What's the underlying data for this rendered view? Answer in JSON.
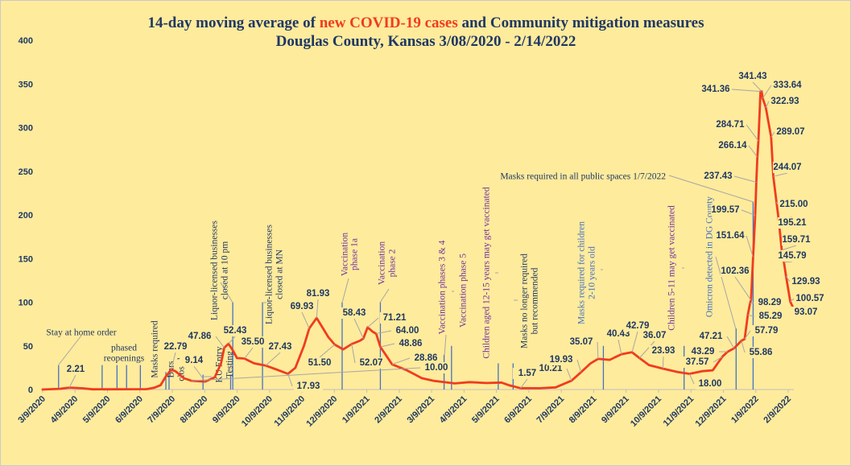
{
  "chart_data": {
    "type": "line",
    "title_line1_before": "14-day moving average of ",
    "title_line1_highlight": "new COVID-19 cases",
    "title_line1_after": " and Community mitigation measures",
    "title_line2": "Douglas County, Kansas 3/08/2020 - 2/14/2022",
    "xlabel": "",
    "ylabel": "",
    "ylim": [
      0,
      400
    ],
    "yticks": [
      "0",
      "50",
      "100",
      "150",
      "200",
      "250",
      "300",
      "350",
      "400"
    ],
    "xticks": [
      "3/9/2020",
      "4/9/2020",
      "5/9/2020",
      "6/9/2020",
      "7/9/2020",
      "8/9/2020",
      "9/9/2020",
      "10/9/2020",
      "11/9/2020",
      "12/9/2020",
      "1/9/2021",
      "2/9/2021",
      "3/9/2021",
      "4/9/2021",
      "5/9/2021",
      "6/9/2021",
      "7/9/2021",
      "8/9/2021",
      "9/9/2021",
      "10/9/2021",
      "11/9/2021",
      "12/9/2021",
      "1/9/2022",
      "2/9/2022"
    ],
    "grid": false,
    "colors": {
      "series": "#F03C1E",
      "event_line": "#4472C4",
      "leader": "#A6A6A6",
      "text": "#1F3864",
      "highlight": "#F03C1E",
      "purple": "#7030A0",
      "blue": "#4472C4"
    },
    "series": [
      {
        "name": "14-day moving average of new COVID-19 cases",
        "points": [
          [
            "2020-03-08",
            0
          ],
          [
            "2020-03-25",
            0.8
          ],
          [
            "2020-04-03",
            2.21
          ],
          [
            "2020-04-15",
            1.5
          ],
          [
            "2020-04-25",
            0.3
          ],
          [
            "2020-06-15",
            0.5
          ],
          [
            "2020-06-22",
            2
          ],
          [
            "2020-06-28",
            5
          ],
          [
            "2020-07-03",
            15
          ],
          [
            "2020-07-08",
            22.79
          ],
          [
            "2020-07-12",
            21
          ],
          [
            "2020-07-20",
            13
          ],
          [
            "2020-07-27",
            10
          ],
          [
            "2020-08-09",
            9.14
          ],
          [
            "2020-08-18",
            14
          ],
          [
            "2020-08-24",
            30
          ],
          [
            "2020-08-27",
            47.86
          ],
          [
            "2020-08-31",
            52.43
          ],
          [
            "2020-09-04",
            45
          ],
          [
            "2020-09-08",
            36
          ],
          [
            "2020-09-15",
            35.5
          ],
          [
            "2020-09-24",
            30
          ],
          [
            "2020-10-05",
            27.43
          ],
          [
            "2020-10-15",
            23
          ],
          [
            "2020-10-26",
            17.93
          ],
          [
            "2020-11-02",
            25
          ],
          [
            "2020-11-10",
            50
          ],
          [
            "2020-11-15",
            69.93
          ],
          [
            "2020-11-22",
            81.93
          ],
          [
            "2020-11-27",
            72
          ],
          [
            "2020-12-03",
            60
          ],
          [
            "2020-12-09",
            51.5
          ],
          [
            "2020-12-17",
            46
          ],
          [
            "2020-12-25",
            52.07
          ],
          [
            "2021-01-02",
            56
          ],
          [
            "2021-01-05",
            58.43
          ],
          [
            "2021-01-09",
            71.21
          ],
          [
            "2021-01-14",
            66
          ],
          [
            "2021-01-17",
            64
          ],
          [
            "2021-01-21",
            48.86
          ],
          [
            "2021-01-27",
            38
          ],
          [
            "2021-02-01",
            28.86
          ],
          [
            "2021-02-15",
            22
          ],
          [
            "2021-03-01",
            13
          ],
          [
            "2021-03-12",
            10
          ],
          [
            "2021-04-01",
            7
          ],
          [
            "2021-04-15",
            8.5
          ],
          [
            "2021-05-01",
            7.5
          ],
          [
            "2021-05-15",
            8
          ],
          [
            "2021-05-22",
            5
          ],
          [
            "2021-06-02",
            1.57
          ],
          [
            "2021-06-20",
            1.5
          ],
          [
            "2021-07-05",
            2.5
          ],
          [
            "2021-07-20",
            10.21
          ],
          [
            "2021-07-29",
            19.93
          ],
          [
            "2021-08-07",
            30
          ],
          [
            "2021-08-14",
            35.07
          ],
          [
            "2021-08-25",
            34
          ],
          [
            "2021-09-05",
            40.43
          ],
          [
            "2021-09-15",
            42.79
          ],
          [
            "2021-09-22",
            36.07
          ],
          [
            "2021-10-01",
            28
          ],
          [
            "2021-10-14",
            23.93
          ],
          [
            "2021-10-28",
            20
          ],
          [
            "2021-11-08",
            18
          ],
          [
            "2021-11-20",
            21
          ],
          [
            "2021-11-30",
            22
          ],
          [
            "2021-12-09",
            37.57
          ],
          [
            "2021-12-14",
            43.29
          ],
          [
            "2021-12-20",
            47.21
          ],
          [
            "2021-12-27",
            55.86
          ],
          [
            "2021-12-30",
            57.79
          ],
          [
            "2022-01-02",
            85.29
          ],
          [
            "2022-01-04",
            98.29
          ],
          [
            "2022-01-05",
            102.36
          ],
          [
            "2022-01-07",
            151.64
          ],
          [
            "2022-01-09",
            199.57
          ],
          [
            "2022-01-10",
            237.43
          ],
          [
            "2022-01-11",
            266.14
          ],
          [
            "2022-01-12",
            284.71
          ],
          [
            "2022-01-14",
            341.36
          ],
          [
            "2022-01-15",
            341.43
          ],
          [
            "2022-01-16",
            333.64
          ],
          [
            "2022-01-19",
            322.93
          ],
          [
            "2022-01-24",
            289.07
          ],
          [
            "2022-01-26",
            244.07
          ],
          [
            "2022-01-29",
            215
          ],
          [
            "2022-01-31",
            195.21
          ],
          [
            "2022-02-03",
            159.71
          ],
          [
            "2022-02-05",
            145.79
          ],
          [
            "2022-02-07",
            129.93
          ],
          [
            "2022-02-11",
            100.57
          ],
          [
            "2022-02-14",
            93.07
          ]
        ]
      }
    ],
    "data_labels": [
      "2.21",
      "22.79",
      "9.14",
      "47.86",
      "52.43",
      "35.50",
      "27.43",
      "17.93",
      "69.93",
      "81.93",
      "51.50",
      "58.43",
      "52.07",
      "71.21",
      "64.00",
      "48.86",
      "28.86",
      "10.00",
      "1.57",
      "10.21",
      "19.93",
      "35.07",
      "40.43",
      "42.79",
      "36.07",
      "23.93",
      "18.00",
      "43.29",
      "37.57",
      "47.21",
      "55.86",
      "57.79",
      "85.29",
      "98.29",
      "102.36",
      "151.64",
      "199.57",
      "237.43",
      "266.14",
      "284.71",
      "341.36",
      "341.43",
      "333.64",
      "322.93",
      "289.07",
      "244.07",
      "215.00",
      "195.21",
      "159.71",
      "145.79",
      "129.93",
      "100.57",
      "93.07"
    ],
    "events": [
      {
        "lines": [
          "Stay at home order"
        ],
        "dates": [
          "2020-03-24"
        ],
        "marker_height": 28,
        "color": "text"
      },
      {
        "lines": [
          "phased",
          "reopenings"
        ],
        "dates": [
          "2020-05-04",
          "2020-05-18",
          "2020-05-27",
          "2020-06-09"
        ],
        "marker_height": 28,
        "color": "text"
      },
      {
        "lines": [
          "Masks required"
        ],
        "dates": [
          "2020-07-03"
        ],
        "marker_height": 20,
        "color": "text"
      },
      {
        "lines": [
          "Bars",
          "closed"
        ],
        "dates": [
          "2020-07-06"
        ],
        "marker_height": 20,
        "color": "text"
      },
      {
        "lines": [
          "KU Entry",
          "Testing"
        ],
        "dates": [
          "2020-08-07",
          "2020-09-02"
        ],
        "marker_height": 17,
        "color": "text"
      },
      {
        "lines": [
          "Liquor-licensed businesses",
          "closed at 10 pm"
        ],
        "dates": [
          "2020-09-04"
        ],
        "marker_height": 100,
        "color": "text"
      },
      {
        "lines": [
          "Liquor-licensed businesses",
          "closed at MN"
        ],
        "dates": [
          "2020-10-02"
        ],
        "marker_height": 100,
        "color": "text"
      },
      {
        "lines": [
          "Vaccination",
          "phase 1a"
        ],
        "dates": [
          "2020-12-16"
        ],
        "marker_height": 100,
        "color": "purple"
      },
      {
        "lines": [
          "Vaccination",
          "phase 2"
        ],
        "dates": [
          "2021-01-21"
        ],
        "marker_height": 100,
        "color": "purple"
      },
      {
        "lines": [
          "Vaccination phases 3 & 4"
        ],
        "dates": [
          "2021-03-22"
        ],
        "marker_height": 40,
        "color": "purple"
      },
      {
        "lines": [
          "Vaccination phase 5"
        ],
        "dates": [
          "2021-03-29"
        ],
        "marker_height": 50,
        "color": "purple"
      },
      {
        "lines": [
          "Children aged 12-15 years may get vaccinated"
        ],
        "dates": [
          "2021-05-12"
        ],
        "marker_height": 30,
        "color": "purple"
      },
      {
        "lines": [
          "Masks no longer required",
          "but recommended"
        ],
        "dates": [
          "2021-05-26"
        ],
        "marker_height": 30,
        "color": "text"
      },
      {
        "lines": [
          "Masks required for children",
          "2-10 years old"
        ],
        "dates": [
          "2021-08-19"
        ],
        "marker_height": 50,
        "color": "blue"
      },
      {
        "lines": [
          "Children 5-11 may get vaccinated"
        ],
        "dates": [
          "2021-11-03"
        ],
        "marker_height": 50,
        "color": "purple"
      },
      {
        "lines": [
          "Omicron detected in DG  County"
        ],
        "dates": [
          "2021-12-22"
        ],
        "marker_height": 70,
        "color": "blue"
      },
      {
        "lines": [
          "Masks required in all public spaces 1/7/2022"
        ],
        "dates": [
          "2022-01-07"
        ],
        "marker_height": 215,
        "color": "text"
      }
    ]
  }
}
